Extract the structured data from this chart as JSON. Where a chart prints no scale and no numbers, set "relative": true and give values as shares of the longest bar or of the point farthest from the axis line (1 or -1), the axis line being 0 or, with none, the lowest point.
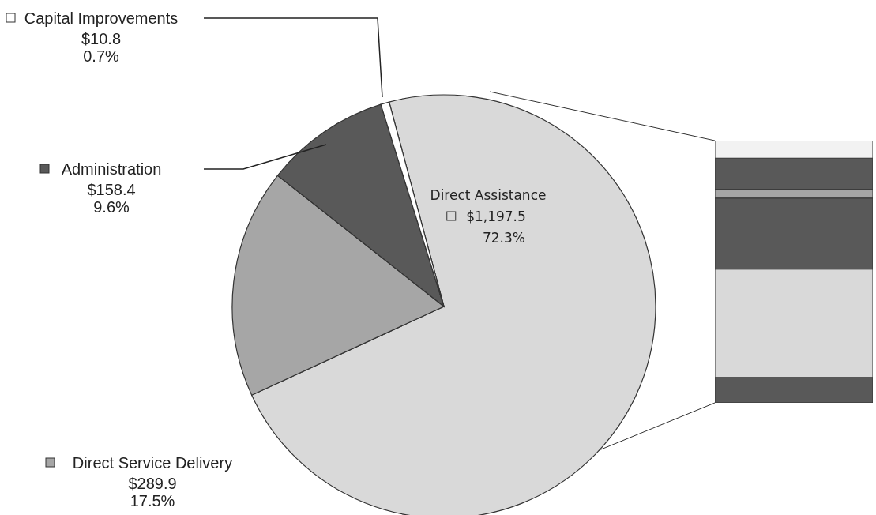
{
  "chart_data": [
    {
      "type": "pie",
      "categories": [
        "Direct Assistance",
        "Direct Service Delivery",
        "Administration",
        "Capital Improvements"
      ],
      "values": [
        1197.5,
        289.9,
        158.4,
        10.8
      ],
      "colors": [
        "#d9d9d9",
        "#a6a6a6",
        "#595959",
        "#ffffff"
      ],
      "legend": "left",
      "value_labels": [
        "$1,197.5\n72.3%",
        "$289.9\n17.5%",
        "$158.4\n9.6%",
        "$10.8\n0.7%"
      ]
    },
    {
      "type": "bar",
      "stacked": true,
      "relative": true,
      "categories": [
        null
      ],
      "series": [
        {
          "color": "#595959",
          "values": [
            0.097
          ]
        },
        {
          "color": "#d9d9d9",
          "values": [
            0.413
          ]
        },
        {
          "color": "#595959",
          "values": [
            0.271
          ]
        },
        {
          "color": "#a6a6a6",
          "values": [
            0.033
          ]
        },
        {
          "color": "#595959",
          "values": [
            0.119
          ]
        },
        {
          "color": "#f2f2f2",
          "values": [
            0.067
          ]
        }
      ]
    }
  ]
}
